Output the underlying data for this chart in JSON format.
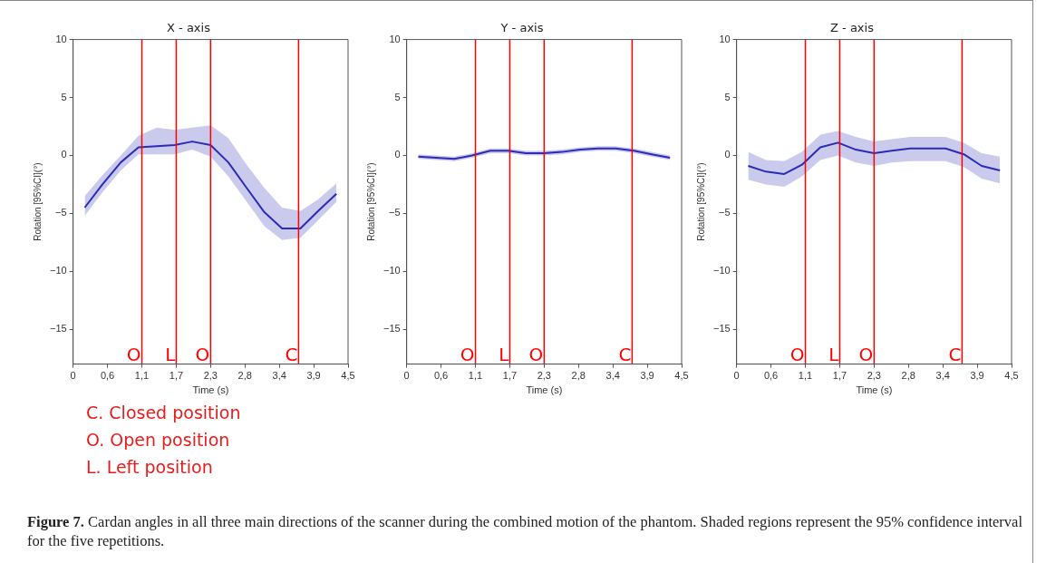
{
  "chart_data": [
    {
      "type": "line",
      "title": "X - axis",
      "xlabel": "Time (s)",
      "ylabel": "Rotation [95%CI](°)",
      "x": [
        0.19,
        0.48,
        0.78,
        1.07,
        1.37,
        1.66,
        1.95,
        2.25,
        2.54,
        2.84,
        3.13,
        3.42,
        3.72,
        4.01,
        4.31
      ],
      "series": [
        {
          "color": "#2b2bb5",
          "values": [
            -4.5,
            -2.5,
            -0.6,
            0.7,
            0.8,
            0.9,
            1.2,
            0.9,
            -0.6,
            -2.8,
            -4.9,
            -6.3,
            -6.3,
            -4.8,
            -3.3
          ],
          "lower": [
            -5.2,
            -3.2,
            -1.3,
            0.1,
            0.1,
            0.1,
            0.5,
            -0.1,
            -1.8,
            -4.0,
            -6.1,
            -7.3,
            -7.1,
            -5.6,
            -4.0
          ],
          "upper": [
            -3.5,
            -1.7,
            0,
            1.7,
            2.4,
            2.2,
            2.4,
            2.6,
            1.5,
            -0.8,
            -2.8,
            -4.5,
            -4.8,
            -3.8,
            -2.4
          ]
        }
      ],
      "xlim": [
        0,
        4.5
      ],
      "ylim": [
        -18,
        10
      ],
      "xticks": [
        {
          "value": 0,
          "label": "0"
        },
        {
          "value": 0.5625,
          "label": "0,6"
        },
        {
          "value": 1.125,
          "label": "1,1"
        },
        {
          "value": 1.6875,
          "label": "1,7"
        },
        {
          "value": 2.25,
          "label": "2,3"
        },
        {
          "value": 2.8125,
          "label": "2,8"
        },
        {
          "value": 3.375,
          "label": "3,4"
        },
        {
          "value": 3.9375,
          "label": "3,9"
        },
        {
          "value": 4.5,
          "label": "4,5"
        }
      ],
      "yticks": [
        -15,
        -10,
        -5,
        0,
        5,
        10
      ],
      "ref_lines": [
        {
          "axis": "x",
          "value": 1.125,
          "label": "O",
          "color": "#ff0000"
        },
        {
          "axis": "x",
          "value": 1.6875,
          "label": "L",
          "color": "#ff0000"
        },
        {
          "axis": "x",
          "value": 2.25,
          "label": "O",
          "color": "#ff0000"
        },
        {
          "axis": "x",
          "value": 3.69,
          "label": "C",
          "color": "#ff0000"
        }
      ],
      "annotations": [
        "C. Closed position",
        "O. Open position",
        "L.  Left position",
        "Figure 7. Cardan angles in all three main directions of the scanner during the combined motion of the phantom. Shaded regions represent the 95% confidence interval for the five repetitions."
      ]
    },
    {
      "type": "line",
      "title": "Y - axis",
      "xlabel": "Time (s)",
      "ylabel": "Rotation [95%CI](°)",
      "x": [
        0.19,
        0.48,
        0.78,
        1.07,
        1.37,
        1.66,
        1.95,
        2.25,
        2.54,
        2.84,
        3.13,
        3.42,
        3.72,
        4.01,
        4.31
      ],
      "series": [
        {
          "color": "#2b2bb5",
          "values": [
            -0.1,
            -0.2,
            -0.3,
            0,
            0.4,
            0.4,
            0.2,
            0.2,
            0.3,
            0.5,
            0.6,
            0.6,
            0.4,
            0.1,
            -0.2
          ],
          "lower": [
            -0.3,
            -0.4,
            -0.5,
            -0.2,
            0.2,
            0.2,
            0,
            0,
            0.1,
            0.3,
            0.4,
            0.4,
            0.2,
            -0.1,
            -0.4
          ],
          "upper": [
            0.1,
            0,
            -0.1,
            0.2,
            0.6,
            0.6,
            0.4,
            0.4,
            0.5,
            0.7,
            0.8,
            0.8,
            0.6,
            0.3,
            0
          ]
        }
      ],
      "xlim": [
        0,
        4.5
      ],
      "ylim": [
        -18,
        10
      ],
      "xticks": [
        0,
        {
          "value": 0.5625,
          "label": "0,6"
        },
        {
          "value": 1.125,
          "label": "1,1"
        },
        {
          "value": 1.6875,
          "label": "1,7"
        },
        {
          "value": 2.25,
          "label": "2,3"
        },
        {
          "value": 2.8125,
          "label": "2,8"
        },
        {
          "value": 3.375,
          "label": "3,4"
        },
        {
          "value": 3.9375,
          "label": "3,9"
        },
        {
          "value": 4.5,
          "label": "4,5"
        }
      ],
      "yticks": [
        -15,
        -10,
        -5,
        0,
        5,
        10
      ],
      "ref_lines": [
        {
          "axis": "x",
          "value": 1.125,
          "label": "O",
          "color": "#ff0000"
        },
        {
          "axis": "x",
          "value": 1.6875,
          "label": "L",
          "color": "#ff0000"
        },
        {
          "axis": "x",
          "value": 2.25,
          "label": "O",
          "color": "#ff0000"
        },
        {
          "axis": "x",
          "value": 3.69,
          "label": "C",
          "color": "#ff0000"
        }
      ]
    },
    {
      "type": "line",
      "title": "Z - axis",
      "xlabel": "Time (s)",
      "ylabel": "Rotation [95%CI](°)",
      "x": [
        0.19,
        0.48,
        0.78,
        1.07,
        1.37,
        1.66,
        1.95,
        2.25,
        2.54,
        2.84,
        3.13,
        3.42,
        3.72,
        4.01,
        4.31
      ],
      "series": [
        {
          "color": "#2b2bb5",
          "values": [
            -0.9,
            -1.4,
            -1.6,
            -0.8,
            0.7,
            1.1,
            0.5,
            0.2,
            0.4,
            0.6,
            0.6,
            0.6,
            0.1,
            -0.9,
            -1.3
          ],
          "lower": [
            -2.1,
            -2.5,
            -2.7,
            -1.8,
            -0.4,
            0,
            -0.6,
            -0.9,
            -0.6,
            -0.5,
            -0.5,
            -0.5,
            -1,
            -2,
            -2.4
          ],
          "upper": [
            0.3,
            -0.4,
            -0.5,
            0.3,
            1.8,
            2.1,
            1.6,
            1.2,
            1.4,
            1.6,
            1.6,
            1.6,
            1.1,
            0.2,
            -0.1
          ]
        }
      ],
      "xlim": [
        0,
        4.5
      ],
      "ylim": [
        -18,
        10
      ],
      "xticks": [
        0,
        {
          "value": 0.5625,
          "label": "0,6"
        },
        {
          "value": 1.125,
          "label": "1,1"
        },
        {
          "value": 1.6875,
          "label": "1,7"
        },
        {
          "value": 2.25,
          "label": "2,3"
        },
        {
          "value": 2.8125,
          "label": "2,8"
        },
        {
          "value": 3.375,
          "label": "3,4"
        },
        {
          "value": 3.9375,
          "label": "3,9"
        },
        {
          "value": 4.5,
          "label": "4,5"
        }
      ],
      "yticks": [
        -15,
        -10,
        -5,
        0,
        5,
        10
      ],
      "ref_lines": [
        {
          "axis": "x",
          "value": 1.125,
          "label": "O",
          "color": "#ff0000"
        },
        {
          "axis": "x",
          "value": 1.6875,
          "label": "L",
          "color": "#ff0000"
        },
        {
          "axis": "x",
          "value": 2.25,
          "label": "O",
          "color": "#ff0000"
        },
        {
          "axis": "x",
          "value": 3.69,
          "label": "C",
          "color": "#ff0000"
        }
      ]
    }
  ]
}
